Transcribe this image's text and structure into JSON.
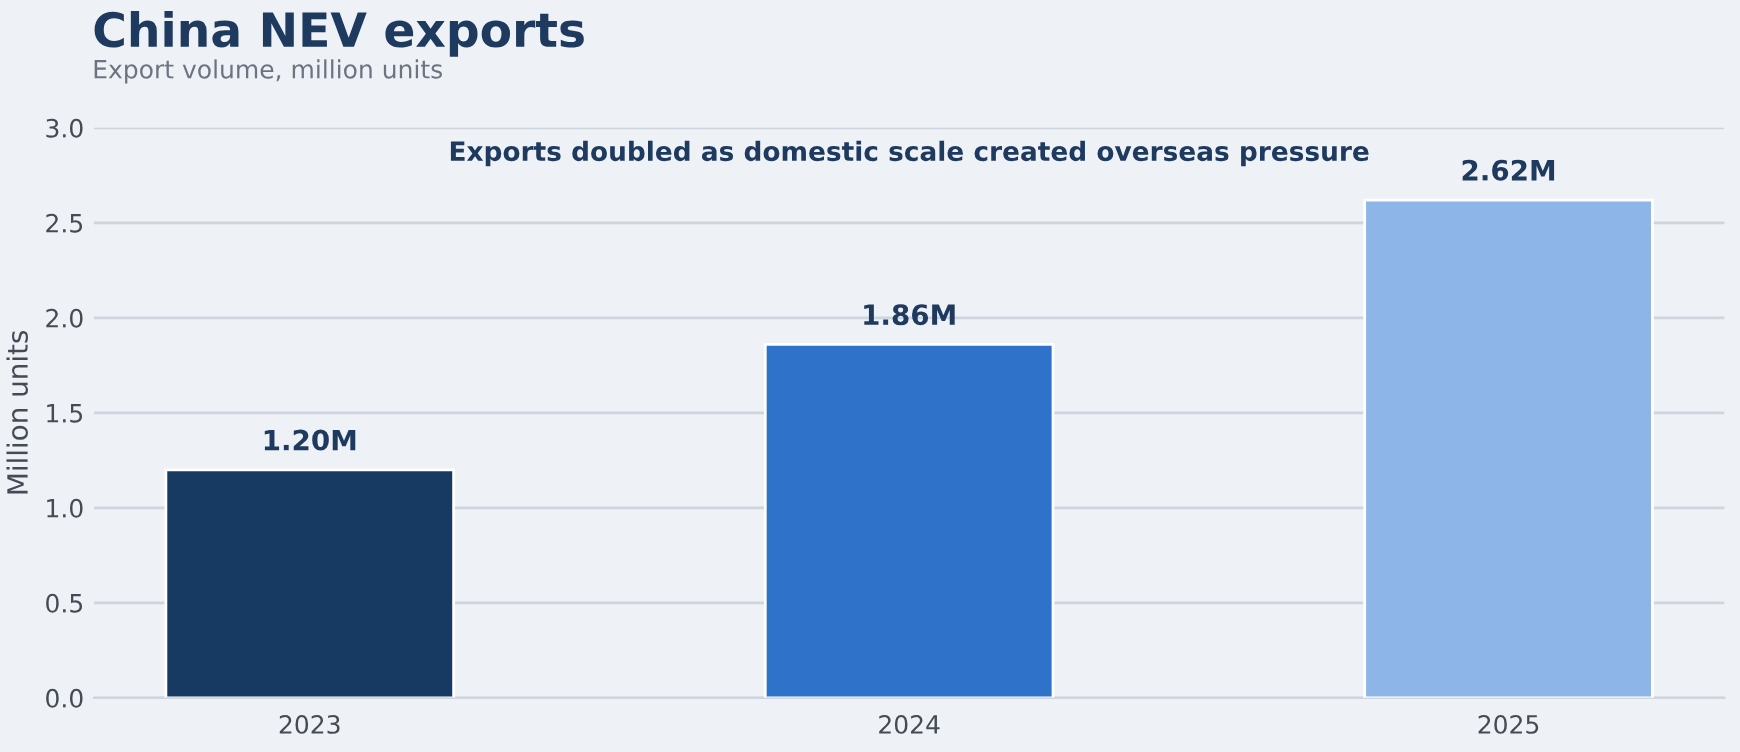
{
  "chart_data": {
    "type": "bar",
    "title": "China NEV exports",
    "subtitle": "Export volume, million units",
    "ylabel": "Million units",
    "categories": [
      "2023",
      "2024",
      "2025"
    ],
    "values": [
      1.2,
      1.86,
      2.62
    ],
    "colors": [
      "#173a63",
      "#2f72c9",
      "#8db5e8"
    ],
    "value_labels": [
      "1.20M",
      "1.86M",
      "2.62M"
    ],
    "annotations": [
      "Exports doubled as domestic scale created overseas pressure"
    ],
    "ylim": [
      0,
      3.0
    ],
    "yticks": [
      {
        "value": 0,
        "label": "0.0"
      },
      {
        "value": 0.5,
        "label": "0.5"
      },
      {
        "value": 1.0,
        "label": "1.0"
      },
      {
        "value": 1.5,
        "label": "1.5"
      },
      {
        "value": 2.0,
        "label": "2.0"
      },
      {
        "value": 2.5,
        "label": "2.5"
      },
      {
        "value": 3.0,
        "label": "3.0"
      }
    ],
    "grid": "y",
    "legend": false
  }
}
